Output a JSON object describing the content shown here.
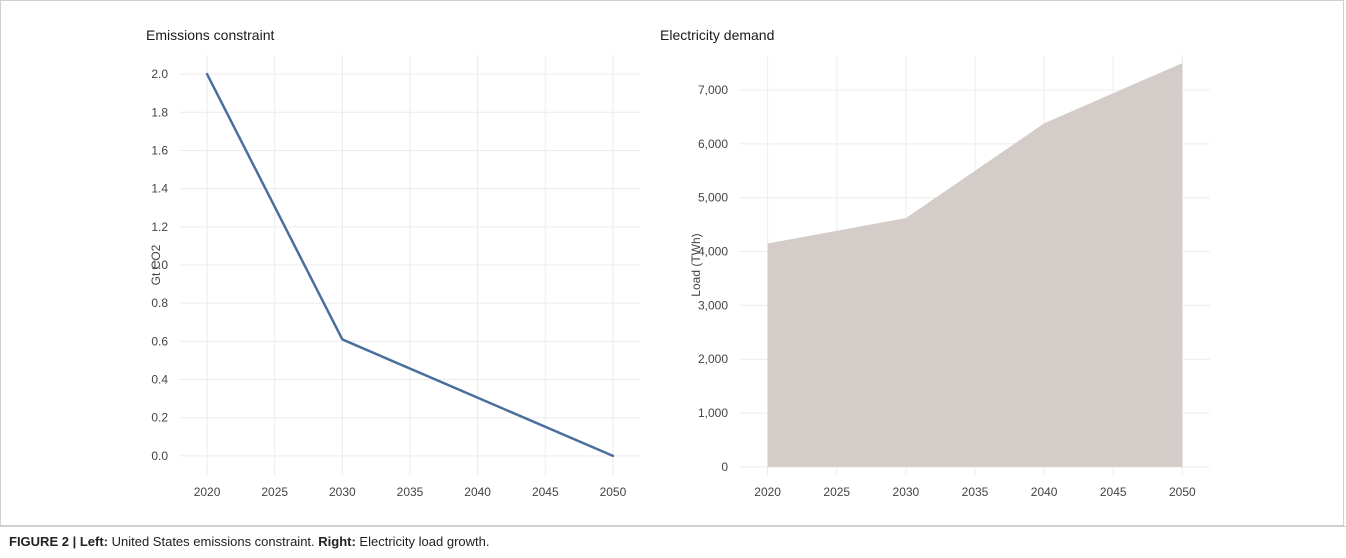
{
  "caption": {
    "figure_label": "FIGURE 2 | ",
    "left_label": "Left:",
    "left_text": " United States emissions constraint. ",
    "right_label": "Right:",
    "right_text": " Electricity load growth."
  },
  "colors": {
    "line": "#4a6f9c",
    "area": "#d3ccc8",
    "grid": "#ececec"
  },
  "chart_data": [
    {
      "type": "line",
      "title": "Emissions constraint",
      "xlabel": "",
      "ylabel": "Gt CO2",
      "x": [
        2020,
        2030,
        2050
      ],
      "series": [
        {
          "name": "",
          "values": [
            2.0,
            0.61,
            0.0
          ]
        }
      ],
      "xticks": [
        2020,
        2025,
        2030,
        2035,
        2040,
        2045,
        2050
      ],
      "yticks": [
        0.0,
        0.2,
        0.4,
        0.6,
        0.8,
        1.0,
        1.2,
        1.4,
        1.6,
        1.8,
        2.0
      ],
      "ytick_labels": [
        "0.0",
        "0.2",
        "0.4",
        "0.6",
        "0.8",
        "1.0",
        "1.2",
        "1.4",
        "1.6",
        "1.8",
        "2.0"
      ],
      "xlim": [
        2018,
        2052
      ],
      "ylim": [
        -0.1,
        2.1
      ],
      "grid": true
    },
    {
      "type": "area",
      "title": "Electricity demand",
      "xlabel": "",
      "ylabel": "Load (TWh)",
      "x": [
        2020,
        2030,
        2040,
        2050
      ],
      "series": [
        {
          "name": "",
          "values": [
            4150,
            4620,
            6380,
            7500
          ]
        }
      ],
      "xticks": [
        2020,
        2025,
        2030,
        2035,
        2040,
        2045,
        2050
      ],
      "yticks": [
        0,
        1000,
        2000,
        3000,
        4000,
        5000,
        6000,
        7000
      ],
      "ytick_labels": [
        "0",
        "1,000",
        "2,000",
        "3,000",
        "4,000",
        "5,000",
        "6,000",
        "7,000"
      ],
      "xlim": [
        2018,
        2052
      ],
      "ylim": [
        -150,
        7650
      ],
      "grid": true
    }
  ]
}
